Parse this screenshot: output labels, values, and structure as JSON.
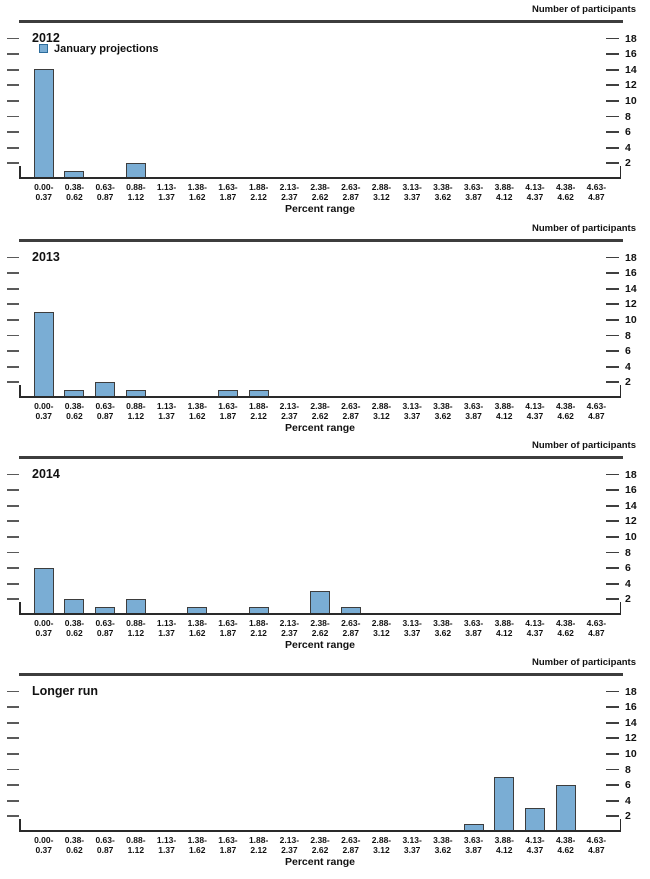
{
  "colors": {
    "bar_fill": "#7aadd4",
    "bar_border": "#3d3d3d",
    "legend_swatch_border": "#2c6c9c",
    "axis": "#2a2a2a",
    "text": "#111111"
  },
  "chart_data": {
    "type": "bar",
    "right_axis_label": "Number of participants",
    "xlabel": "Percent range",
    "ylim": [
      0,
      19
    ],
    "y_ticks": [
      2,
      4,
      6,
      8,
      10,
      12,
      14,
      16,
      18
    ],
    "grid": false,
    "legend_position": "top-left-first-panel-only",
    "categories": [
      "0.00-\n0.37",
      "0.38-\n0.62",
      "0.63-\n0.87",
      "0.88-\n1.12",
      "1.13-\n1.37",
      "1.38-\n1.62",
      "1.63-\n1.87",
      "1.88-\n2.12",
      "2.13-\n2.37",
      "2.38-\n2.62",
      "2.63-\n2.87",
      "2.88-\n3.12",
      "3.13-\n3.37",
      "3.38-\n3.62",
      "3.63-\n3.87",
      "3.88-\n4.12",
      "4.13-\n4.37",
      "4.38-\n4.62",
      "4.63-\n4.87"
    ],
    "panels": [
      {
        "title": "2012",
        "legend": "January projections",
        "values": [
          14,
          1,
          0,
          2,
          0,
          0,
          0,
          0,
          0,
          0,
          0,
          0,
          0,
          0,
          0,
          0,
          0,
          0,
          0
        ]
      },
      {
        "title": "2013",
        "legend": null,
        "values": [
          11,
          1,
          2,
          1,
          0,
          0,
          1,
          1,
          0,
          0,
          0,
          0,
          0,
          0,
          0,
          0,
          0,
          0,
          0
        ]
      },
      {
        "title": "2014",
        "legend": null,
        "values": [
          6,
          2,
          1,
          2,
          0,
          1,
          0,
          1,
          0,
          3,
          1,
          0,
          0,
          0,
          0,
          0,
          0,
          0,
          0
        ]
      },
      {
        "title": "Longer run",
        "legend": null,
        "values": [
          0,
          0,
          0,
          0,
          0,
          0,
          0,
          0,
          0,
          0,
          0,
          0,
          0,
          0,
          1,
          7,
          3,
          6,
          0
        ]
      }
    ]
  }
}
